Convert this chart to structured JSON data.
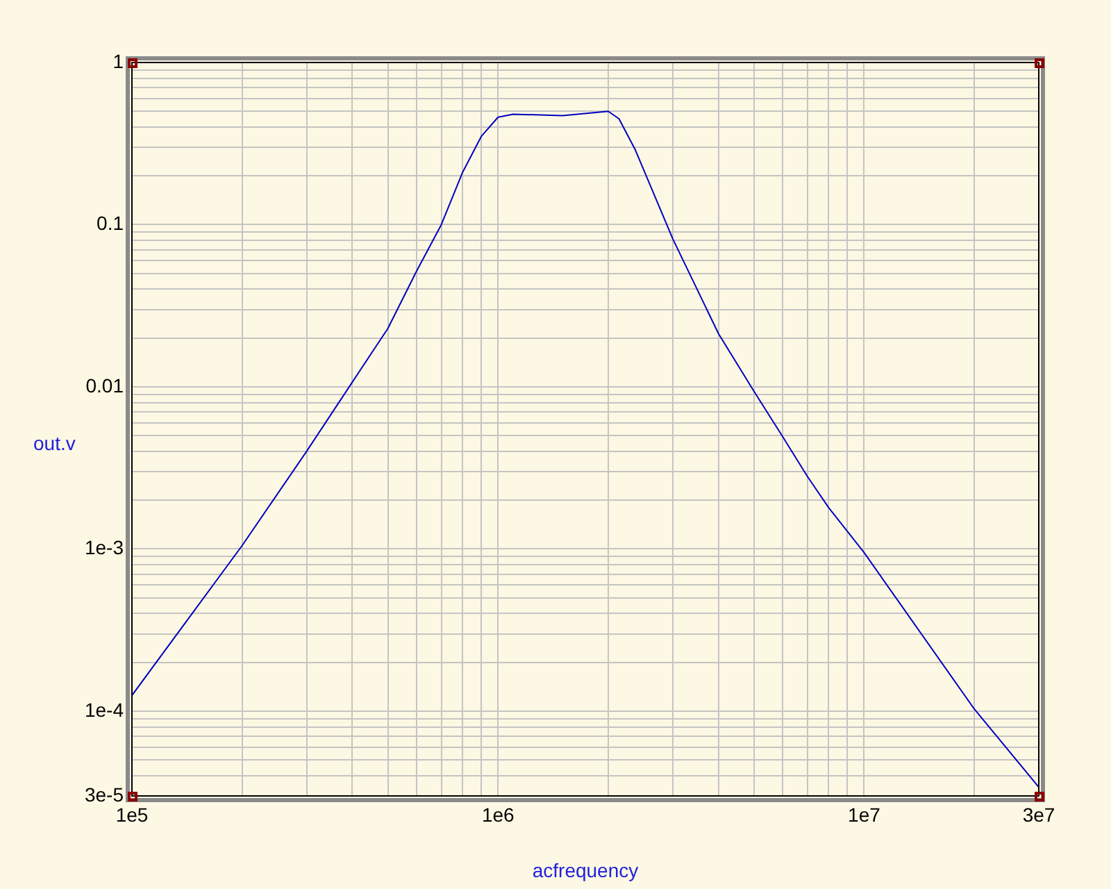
{
  "chart_data": {
    "type": "line",
    "xlabel": "acfrequency",
    "ylabel": "out.v",
    "log": "xy",
    "grid": true,
    "legend": false,
    "marker": "none",
    "line_style": "solid",
    "xlim": [
      100000,
      30000000
    ],
    "ylim": [
      3e-05,
      1
    ],
    "xticks": [
      {
        "value": 100000,
        "label": "1e5"
      },
      {
        "value": 200000,
        "label": null
      },
      {
        "value": 300000,
        "label": null
      },
      {
        "value": 400000,
        "label": null
      },
      {
        "value": 500000,
        "label": null
      },
      {
        "value": 600000,
        "label": null
      },
      {
        "value": 700000,
        "label": null
      },
      {
        "value": 800000,
        "label": null
      },
      {
        "value": 900000,
        "label": null
      },
      {
        "value": 1000000,
        "label": "1e6"
      },
      {
        "value": 2000000,
        "label": null
      },
      {
        "value": 3000000,
        "label": null
      },
      {
        "value": 4000000,
        "label": null
      },
      {
        "value": 5000000,
        "label": null
      },
      {
        "value": 6000000,
        "label": null
      },
      {
        "value": 7000000,
        "label": null
      },
      {
        "value": 8000000,
        "label": null
      },
      {
        "value": 9000000,
        "label": null
      },
      {
        "value": 10000000,
        "label": "1e7"
      },
      {
        "value": 20000000,
        "label": null
      },
      {
        "value": 30000000,
        "label": "3e7"
      }
    ],
    "yticks": [
      {
        "value": 3e-05,
        "label": "3e-5"
      },
      {
        "value": 4e-05,
        "label": null
      },
      {
        "value": 5e-05,
        "label": null
      },
      {
        "value": 6e-05,
        "label": null
      },
      {
        "value": 7e-05,
        "label": null
      },
      {
        "value": 8e-05,
        "label": null
      },
      {
        "value": 9e-05,
        "label": null
      },
      {
        "value": 0.0001,
        "label": "1e-4"
      },
      {
        "value": 0.0002,
        "label": null
      },
      {
        "value": 0.0003,
        "label": null
      },
      {
        "value": 0.0004,
        "label": null
      },
      {
        "value": 0.0005,
        "label": null
      },
      {
        "value": 0.0006,
        "label": null
      },
      {
        "value": 0.0007,
        "label": null
      },
      {
        "value": 0.0008,
        "label": null
      },
      {
        "value": 0.0009,
        "label": null
      },
      {
        "value": 0.001,
        "label": "1e-3"
      },
      {
        "value": 0.002,
        "label": null
      },
      {
        "value": 0.003,
        "label": null
      },
      {
        "value": 0.004,
        "label": null
      },
      {
        "value": 0.005,
        "label": null
      },
      {
        "value": 0.006,
        "label": null
      },
      {
        "value": 0.007,
        "label": null
      },
      {
        "value": 0.008,
        "label": null
      },
      {
        "value": 0.009,
        "label": null
      },
      0.01,
      {
        "value": 0.02,
        "label": null
      },
      {
        "value": 0.03,
        "label": null
      },
      {
        "value": 0.04,
        "label": null
      },
      {
        "value": 0.05,
        "label": null
      },
      {
        "value": 0.06,
        "label": null
      },
      {
        "value": 0.07,
        "label": null
      },
      {
        "value": 0.08,
        "label": null
      },
      {
        "value": 0.09,
        "label": null
      },
      0.1,
      {
        "value": 0.2,
        "label": null
      },
      {
        "value": 0.3,
        "label": null
      },
      {
        "value": 0.4,
        "label": null
      },
      {
        "value": 0.5,
        "label": null
      },
      {
        "value": 0.6,
        "label": null
      },
      {
        "value": 0.7,
        "label": null
      },
      {
        "value": 0.8,
        "label": null
      },
      {
        "value": 0.9,
        "label": null
      },
      1
    ],
    "series": [
      {
        "color": "#0000c0",
        "x": [
          100000,
          200000,
          300000,
          400000,
          500000,
          600000,
          700000,
          800000,
          900000,
          1000000,
          1100000,
          1500000,
          2000000,
          2140000,
          2370000,
          3000000,
          4000000,
          5000000,
          6000000,
          7000000,
          8000000,
          10000000,
          20000000,
          30000000
        ],
        "values": [
          0.000125,
          0.00105,
          0.004,
          0.0107,
          0.0229,
          0.052,
          0.1,
          0.21,
          0.35,
          0.46,
          0.48,
          0.47,
          0.5,
          0.45,
          0.29,
          0.082,
          0.0213,
          0.0094,
          0.0049,
          0.0028,
          0.0018,
          0.00095,
          0.000103,
          3.4e-05
        ]
      }
    ]
  }
}
